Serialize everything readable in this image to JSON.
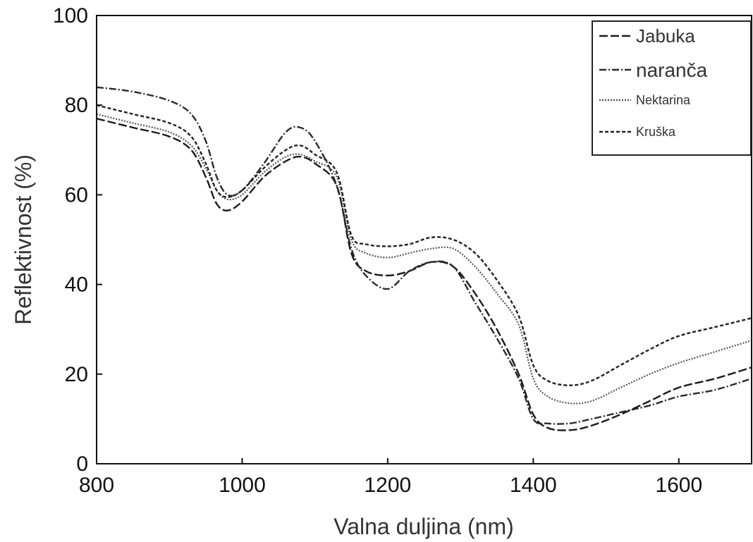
{
  "chart_data": {
    "type": "line",
    "xlabel": "Valna duljina (nm)",
    "ylabel": "Reflektivnost (%)",
    "xlim": [
      800,
      1700
    ],
    "ylim": [
      0,
      100
    ],
    "xticks": [
      800,
      1000,
      1200,
      1400,
      1600
    ],
    "yticks": [
      0,
      20,
      40,
      60,
      80,
      100
    ],
    "grid": false,
    "legend_position": "top-right",
    "series": [
      {
        "name": "Jabuka",
        "dash": "long-dash",
        "points": [
          [
            800,
            77
          ],
          [
            850,
            75
          ],
          [
            900,
            73
          ],
          [
            930,
            70
          ],
          [
            950,
            64
          ],
          [
            965,
            58
          ],
          [
            980,
            56.5
          ],
          [
            1000,
            58.5
          ],
          [
            1030,
            64
          ],
          [
            1060,
            67.5
          ],
          [
            1080,
            68.5
          ],
          [
            1100,
            67
          ],
          [
            1130,
            62
          ],
          [
            1150,
            47
          ],
          [
            1170,
            43
          ],
          [
            1200,
            42
          ],
          [
            1230,
            43
          ],
          [
            1260,
            45
          ],
          [
            1290,
            44
          ],
          [
            1320,
            38
          ],
          [
            1350,
            30
          ],
          [
            1380,
            20
          ],
          [
            1400,
            11
          ],
          [
            1420,
            8
          ],
          [
            1450,
            7.5
          ],
          [
            1480,
            8.5
          ],
          [
            1520,
            11
          ],
          [
            1560,
            14
          ],
          [
            1600,
            17
          ],
          [
            1650,
            19
          ],
          [
            1700,
            21.5
          ]
        ]
      },
      {
        "name": "naranča",
        "dash": "dash-dot",
        "points": [
          [
            800,
            84
          ],
          [
            850,
            83
          ],
          [
            900,
            81
          ],
          [
            930,
            78
          ],
          [
            950,
            72
          ],
          [
            965,
            64
          ],
          [
            980,
            60
          ],
          [
            1000,
            61
          ],
          [
            1030,
            67
          ],
          [
            1060,
            74
          ],
          [
            1080,
            75
          ],
          [
            1100,
            72
          ],
          [
            1130,
            62
          ],
          [
            1150,
            48
          ],
          [
            1170,
            42
          ],
          [
            1200,
            39
          ],
          [
            1230,
            43
          ],
          [
            1260,
            45
          ],
          [
            1290,
            44
          ],
          [
            1320,
            36
          ],
          [
            1350,
            28
          ],
          [
            1380,
            19
          ],
          [
            1400,
            10
          ],
          [
            1420,
            9
          ],
          [
            1450,
            9
          ],
          [
            1480,
            10
          ],
          [
            1520,
            11.5
          ],
          [
            1560,
            13
          ],
          [
            1600,
            15
          ],
          [
            1650,
            16.5
          ],
          [
            1700,
            19
          ]
        ]
      },
      {
        "name": "Nektarina",
        "dash": "dotted",
        "points": [
          [
            800,
            78
          ],
          [
            850,
            76
          ],
          [
            900,
            74
          ],
          [
            930,
            71
          ],
          [
            950,
            66
          ],
          [
            965,
            61
          ],
          [
            980,
            59
          ],
          [
            1000,
            60
          ],
          [
            1030,
            65
          ],
          [
            1060,
            68.5
          ],
          [
            1080,
            69
          ],
          [
            1100,
            67.5
          ],
          [
            1130,
            64
          ],
          [
            1150,
            50
          ],
          [
            1170,
            47
          ],
          [
            1200,
            46
          ],
          [
            1230,
            47
          ],
          [
            1260,
            48
          ],
          [
            1290,
            48
          ],
          [
            1320,
            44
          ],
          [
            1350,
            38
          ],
          [
            1380,
            31
          ],
          [
            1400,
            19
          ],
          [
            1420,
            15
          ],
          [
            1450,
            13.5
          ],
          [
            1480,
            14
          ],
          [
            1520,
            17
          ],
          [
            1560,
            20
          ],
          [
            1600,
            22.5
          ],
          [
            1650,
            25
          ],
          [
            1700,
            27.5
          ]
        ]
      },
      {
        "name": "Kruška",
        "dash": "short-dash",
        "points": [
          [
            800,
            80
          ],
          [
            850,
            78
          ],
          [
            900,
            76
          ],
          [
            930,
            73
          ],
          [
            950,
            67
          ],
          [
            965,
            61
          ],
          [
            980,
            59.5
          ],
          [
            1000,
            61
          ],
          [
            1030,
            66
          ],
          [
            1060,
            70
          ],
          [
            1080,
            71
          ],
          [
            1100,
            69
          ],
          [
            1130,
            65
          ],
          [
            1150,
            51
          ],
          [
            1170,
            49
          ],
          [
            1200,
            48.5
          ],
          [
            1230,
            49
          ],
          [
            1260,
            50.5
          ],
          [
            1290,
            50
          ],
          [
            1320,
            47
          ],
          [
            1350,
            41
          ],
          [
            1380,
            33
          ],
          [
            1400,
            22
          ],
          [
            1420,
            18.5
          ],
          [
            1450,
            17.5
          ],
          [
            1480,
            18.5
          ],
          [
            1520,
            22
          ],
          [
            1560,
            25.5
          ],
          [
            1600,
            28.5
          ],
          [
            1650,
            30.5
          ],
          [
            1700,
            32.5
          ]
        ]
      }
    ]
  }
}
